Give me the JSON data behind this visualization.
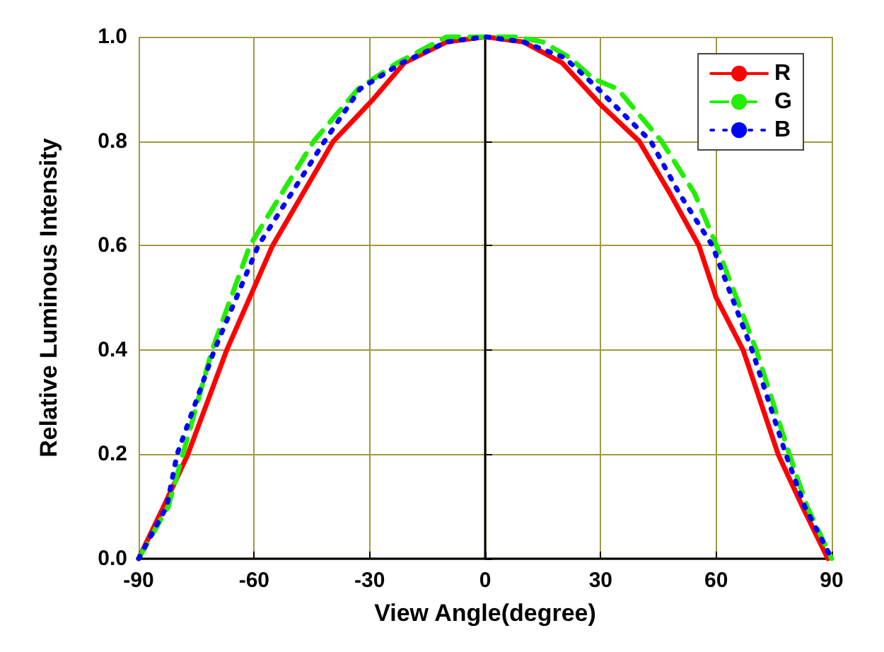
{
  "chart_data": {
    "type": "line",
    "xlabel": "View Angle(degree)",
    "ylabel": "Relative Luminous Intensity",
    "xlim": [
      -90,
      90
    ],
    "xticks": [
      -90,
      -60,
      -30,
      0,
      30,
      60,
      90
    ],
    "ylim": [
      0,
      1
    ],
    "yticks": [
      {
        "value": 0,
        "label": "0.0"
      },
      {
        "value": 0.2,
        "label": "0.2"
      },
      {
        "value": 0.4,
        "label": "0.4"
      },
      {
        "value": 0.6,
        "label": "0.6"
      },
      {
        "value": 0.8,
        "label": "0.8"
      },
      {
        "value": 1,
        "label": "1.0"
      }
    ],
    "grid": true,
    "legend": "top right",
    "marker": "none",
    "series": [
      {
        "name": "R",
        "color": "#ff0000",
        "line_style": "solid",
        "x": [
          -90,
          -83.5,
          -77.2,
          -67.1,
          -55.2,
          -39.4,
          -29.1,
          -21,
          -10,
          0,
          10,
          20,
          30,
          40,
          48,
          55.5,
          60,
          67,
          76.1,
          82.4,
          89
        ],
        "values": [
          0,
          0.1,
          0.2,
          0.4,
          0.6,
          0.8,
          0.88,
          0.95,
          0.99,
          1,
          0.99,
          0.95,
          0.87,
          0.8,
          0.7,
          0.6,
          0.5,
          0.4,
          0.2,
          0.1,
          0
        ]
      },
      {
        "name": "G",
        "color": "#22ee00",
        "line_style": "dashed",
        "x": [
          -90,
          -82.3,
          -78.5,
          -70.9,
          -61.1,
          -44.5,
          -33,
          -22.8,
          -10,
          0,
          8,
          15,
          22,
          28,
          34.4,
          45.8,
          54.4,
          60.1,
          70.4,
          79,
          83.6,
          90
        ],
        "values": [
          0,
          0.1,
          0.2,
          0.4,
          0.6,
          0.8,
          0.9,
          0.95,
          1,
          1,
          1,
          0.99,
          0.96,
          0.92,
          0.9,
          0.8,
          0.7,
          0.6,
          0.4,
          0.2,
          0.1,
          0
        ]
      },
      {
        "name": "B",
        "color": "#0000ff",
        "line_style": "dotted",
        "x": [
          -90,
          -82.7,
          -80,
          -70.3,
          -58.9,
          -41.7,
          -32.5,
          -21.6,
          -10,
          0,
          10,
          20.6,
          28,
          43,
          50.4,
          59,
          69.3,
          78.1,
          83,
          90
        ],
        "values": [
          0,
          0.1,
          0.2,
          0.4,
          0.6,
          0.8,
          0.9,
          0.95,
          0.99,
          1,
          0.99,
          0.96,
          0.91,
          0.8,
          0.7,
          0.6,
          0.4,
          0.2,
          0.1,
          0
        ]
      }
    ]
  }
}
